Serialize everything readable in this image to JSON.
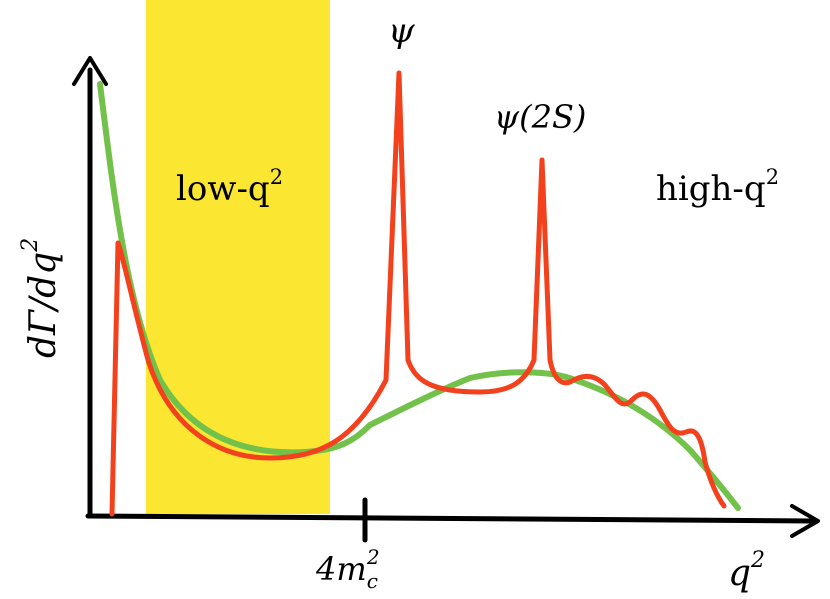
{
  "regions": {
    "low_label_base": "low-q",
    "low_label_sup": "2",
    "high_label_base": "high-q",
    "high_label_sup": "2"
  },
  "resonances": {
    "psi": "ψ",
    "psi2s": "ψ(2S)"
  },
  "axes": {
    "y_label": "dΓ/dq",
    "y_label_sup": "2",
    "x_label": "q",
    "x_label_sup": "2",
    "tick_label_base": "4m",
    "tick_label_sub": "c",
    "tick_label_sup": "2"
  },
  "colors": {
    "band": "#fbe632",
    "green_curve": "#72c14a",
    "red_curve": "#f2411c",
    "axis": "#000000"
  }
}
